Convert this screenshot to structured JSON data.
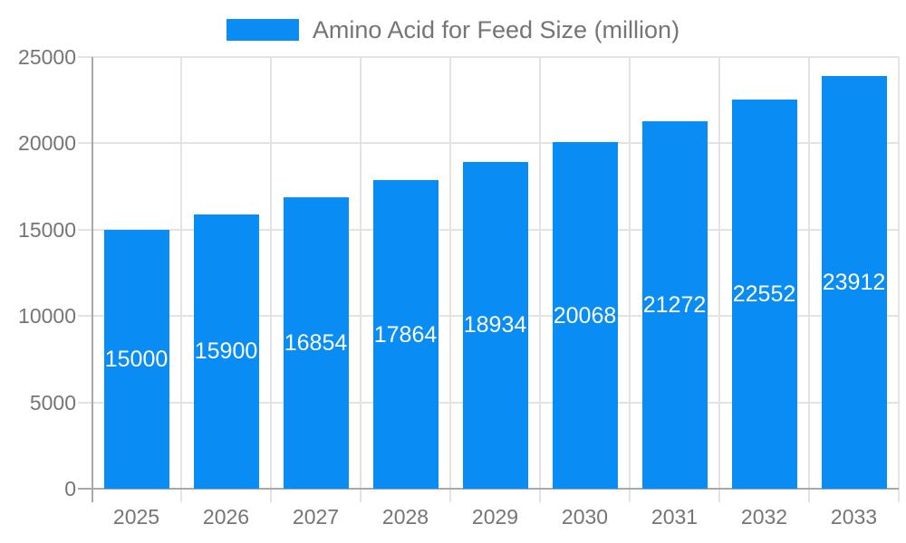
{
  "legend": {
    "label": "Amino Acid for Feed Size (million)"
  },
  "colors": {
    "bar": "#0a8cf5",
    "grid": "#e3e3e3",
    "axis": "#a8a8a8",
    "text": "#757575",
    "value_label": "#ffffff",
    "background": "#ffffff"
  },
  "chart_data": {
    "type": "bar",
    "title": "Amino Acid for Feed Size (million)",
    "categories": [
      "2025",
      "2026",
      "2027",
      "2028",
      "2029",
      "2030",
      "2031",
      "2032",
      "2033"
    ],
    "values": [
      15000,
      15900,
      16854,
      17864,
      18934,
      20068,
      21272,
      22552,
      23912
    ],
    "xlabel": "",
    "ylabel": "",
    "ylim": [
      0,
      25000
    ],
    "yticks": [
      0,
      5000,
      10000,
      15000,
      20000,
      25000
    ],
    "grid": true,
    "legend_position": "top-center",
    "value_labels_position": "inside-middle"
  }
}
